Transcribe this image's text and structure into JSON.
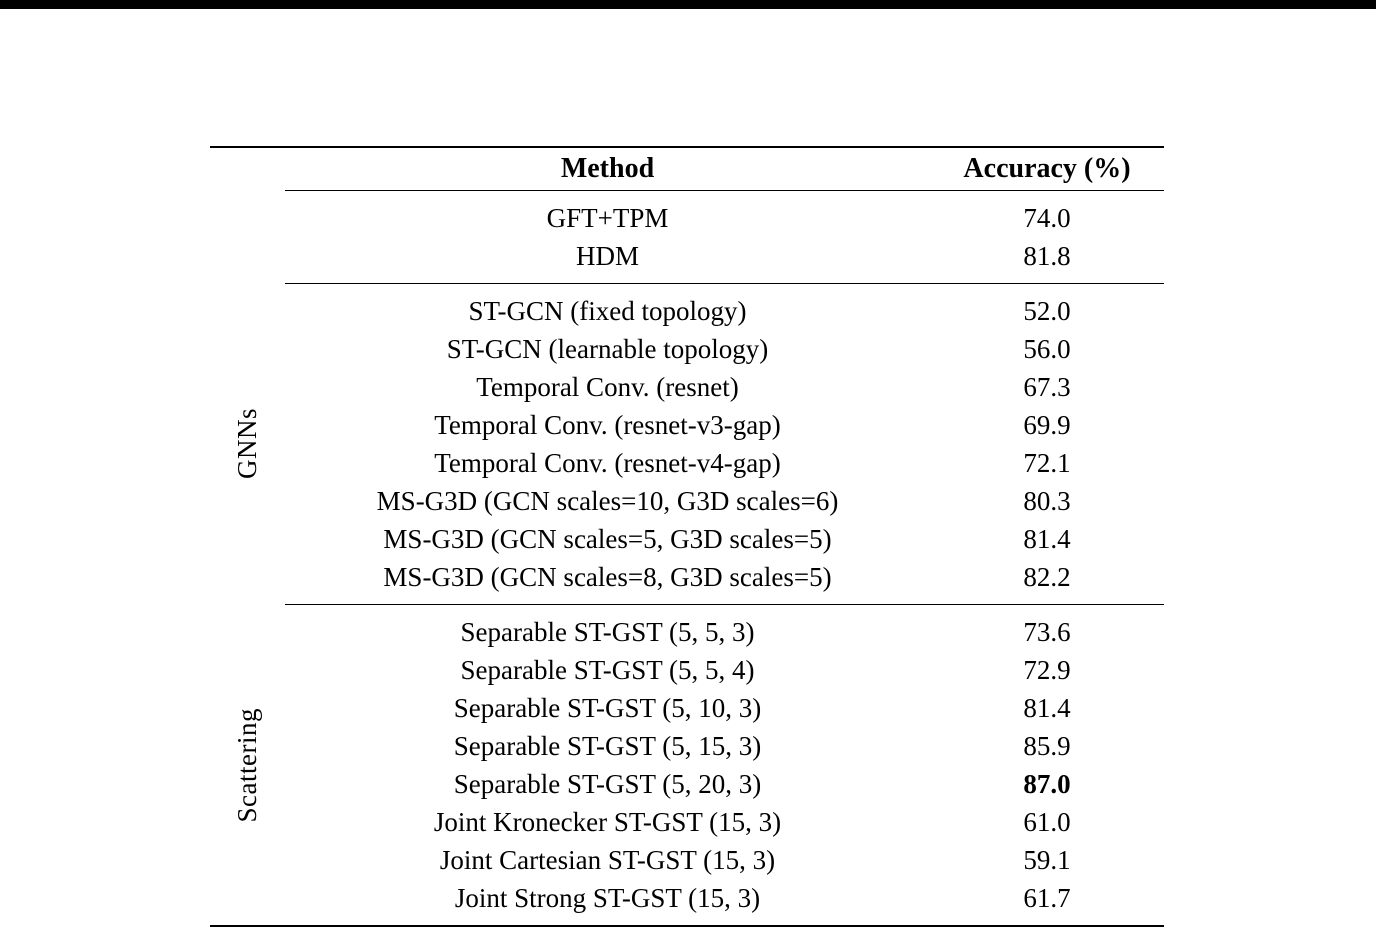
{
  "page": {
    "background": "#ffffff",
    "top_bar_color": "#000000",
    "text_color": "#000000",
    "rule_color": "#000000"
  },
  "table": {
    "headers": {
      "method": "Method",
      "accuracy": "Accuracy (%)"
    },
    "groups": [
      {
        "label": "",
        "rows": [
          {
            "method": "GFT+TPM",
            "accuracy": "74.0",
            "accuracy_bold": false
          },
          {
            "method": "HDM",
            "accuracy": "81.8",
            "accuracy_bold": false
          }
        ]
      },
      {
        "label": "GNNs",
        "rows": [
          {
            "method": "ST-GCN (fixed topology)",
            "accuracy": "52.0",
            "accuracy_bold": false
          },
          {
            "method": "ST-GCN (learnable topology)",
            "accuracy": "56.0",
            "accuracy_bold": false
          },
          {
            "method": "Temporal Conv. (resnet)",
            "accuracy": "67.3",
            "accuracy_bold": false
          },
          {
            "method": "Temporal Conv. (resnet-v3-gap)",
            "accuracy": "69.9",
            "accuracy_bold": false
          },
          {
            "method": "Temporal Conv. (resnet-v4-gap)",
            "accuracy": "72.1",
            "accuracy_bold": false
          },
          {
            "method": "MS-G3D (GCN scales=10, G3D scales=6)",
            "accuracy": "80.3",
            "accuracy_bold": false
          },
          {
            "method": "MS-G3D (GCN scales=5, G3D scales=5)",
            "accuracy": "81.4",
            "accuracy_bold": false
          },
          {
            "method": "MS-G3D (GCN scales=8, G3D scales=5)",
            "accuracy": "82.2",
            "accuracy_bold": false
          }
        ]
      },
      {
        "label": "Scattering",
        "rows": [
          {
            "method": "Separable ST-GST (5, 5, 3)",
            "accuracy": "73.6",
            "accuracy_bold": false
          },
          {
            "method": "Separable ST-GST (5, 5, 4)",
            "accuracy": "72.9",
            "accuracy_bold": false
          },
          {
            "method": "Separable ST-GST (5, 10, 3)",
            "accuracy": "81.4",
            "accuracy_bold": false
          },
          {
            "method": "Separable ST-GST (5, 15, 3)",
            "accuracy": "85.9",
            "accuracy_bold": false
          },
          {
            "method": "Separable ST-GST (5, 20, 3)",
            "accuracy": "87.0",
            "accuracy_bold": true
          },
          {
            "method": "Joint Kronecker ST-GST (15, 3)",
            "accuracy": "61.0",
            "accuracy_bold": false
          },
          {
            "method": "Joint Cartesian ST-GST (15, 3)",
            "accuracy": "59.1",
            "accuracy_bold": false
          },
          {
            "method": "Joint Strong ST-GST (15, 3)",
            "accuracy": "61.7",
            "accuracy_bold": false
          }
        ]
      }
    ]
  }
}
